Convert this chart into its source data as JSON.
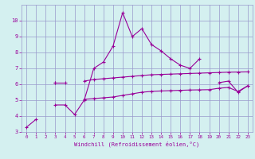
{
  "xlabel": "Windchill (Refroidissement éolien,°C)",
  "x": [
    0,
    1,
    2,
    3,
    4,
    5,
    6,
    7,
    8,
    9,
    10,
    11,
    12,
    13,
    14,
    15,
    16,
    17,
    18,
    19,
    20,
    21,
    22,
    23
  ],
  "line1_y": [
    3.3,
    3.8,
    null,
    4.7,
    4.7,
    4.1,
    5.0,
    7.0,
    7.4,
    8.4,
    10.5,
    9.0,
    9.5,
    8.5,
    8.1,
    7.6,
    7.2,
    7.0,
    7.6,
    null,
    6.1,
    6.2,
    5.5,
    5.9
  ],
  "line2_y": [
    null,
    null,
    null,
    6.1,
    6.1,
    null,
    6.2,
    6.3,
    6.35,
    6.4,
    6.45,
    6.5,
    6.55,
    6.6,
    6.62,
    6.64,
    6.66,
    6.68,
    6.7,
    6.72,
    6.74,
    6.76,
    6.77,
    6.78
  ],
  "line3_y": [
    null,
    null,
    null,
    6.1,
    null,
    null,
    5.05,
    5.1,
    5.15,
    5.2,
    5.3,
    5.4,
    5.5,
    5.55,
    5.58,
    5.6,
    5.62,
    5.64,
    5.65,
    5.66,
    5.75,
    5.8,
    5.55,
    5.9
  ],
  "line_color": "#990099",
  "bg_color": "#d4f0f0",
  "grid_color": "#9999cc",
  "ylim": [
    3,
    11
  ],
  "xlim": [
    -0.5,
    23.5
  ],
  "yticks": [
    3,
    4,
    5,
    6,
    7,
    8,
    9,
    10
  ],
  "xticks": [
    0,
    1,
    2,
    3,
    4,
    5,
    6,
    7,
    8,
    9,
    10,
    11,
    12,
    13,
    14,
    15,
    16,
    17,
    18,
    19,
    20,
    21,
    22,
    23
  ]
}
